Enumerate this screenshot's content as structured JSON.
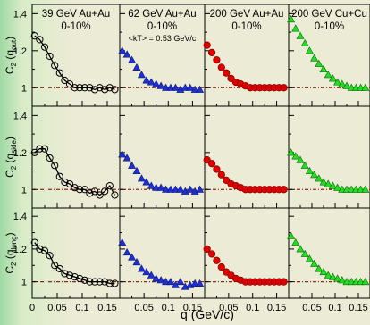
{
  "figure": {
    "x_label": "q (GeV/c)",
    "row_labels": [
      {
        "main": "C",
        "sub": "2",
        "open": " (q",
        "qsub": "out",
        "close": ")"
      },
      {
        "main": "C",
        "sub": "2",
        "open": " (q",
        "qsub": "side",
        "close": ")"
      },
      {
        "main": "C",
        "sub": "2",
        "open": " (q",
        "qsub": "long",
        "close": ")"
      }
    ],
    "columns": [
      {
        "title": "39 GeV Au+Au",
        "centrality": "0-10%",
        "color": "#000000",
        "marker": "open-circle"
      },
      {
        "title": "62 GeV Au+Au",
        "centrality": "0-10%",
        "kt_note": "<kT> = 0.53 GeV/c",
        "color": "#1f2fd0",
        "marker": "triangle"
      },
      {
        "title": "200 GeV Au+Au",
        "centrality": "0-10%",
        "color": "#e00000",
        "marker": "circle"
      },
      {
        "title": "200 GeV Cu+Cu",
        "centrality": "0-10%",
        "color": "#22dd22",
        "marker": "triangle"
      }
    ],
    "y_ticks": [
      "1.4",
      "1.2",
      "1"
    ],
    "x_ticks_first": [
      "0",
      "0.05",
      "0.1",
      "0.15"
    ],
    "x_ticks_other": [
      "0.05",
      "0.1",
      "0.15"
    ],
    "baseline_color": "#8b2a1a"
  },
  "chart_data": {
    "type": "scatter",
    "xlabel": "q (GeV/c)",
    "ylim": [
      0.9,
      1.45
    ],
    "xlim": [
      0,
      0.175
    ],
    "rows": [
      "q_out",
      "q_side",
      "q_long"
    ],
    "series": [
      {
        "name": "39 GeV Au+Au",
        "row": "q_out",
        "x": [
          0.005,
          0.015,
          0.025,
          0.035,
          0.045,
          0.055,
          0.065,
          0.075,
          0.085,
          0.095,
          0.105,
          0.115,
          0.125,
          0.135,
          0.145,
          0.155,
          0.165
        ],
        "y": [
          1.28,
          1.26,
          1.22,
          1.17,
          1.12,
          1.08,
          1.04,
          1.02,
          1.0,
          1.0,
          1.0,
          1.0,
          0.99,
          1.0,
          0.99,
          1.0,
          0.99
        ]
      },
      {
        "name": "39 GeV Au+Au",
        "row": "q_side",
        "x": [
          0.005,
          0.015,
          0.025,
          0.035,
          0.045,
          0.055,
          0.065,
          0.075,
          0.085,
          0.095,
          0.105,
          0.115,
          0.125,
          0.135,
          0.145,
          0.155,
          0.165
        ],
        "y": [
          1.2,
          1.22,
          1.22,
          1.17,
          1.13,
          1.07,
          1.04,
          1.03,
          1.01,
          1.0,
          1.0,
          0.98,
          0.99,
          0.97,
          0.99,
          1.02,
          0.97
        ]
      },
      {
        "name": "39 GeV Au+Au",
        "row": "q_long",
        "x": [
          0.005,
          0.015,
          0.025,
          0.035,
          0.045,
          0.055,
          0.065,
          0.075,
          0.085,
          0.095,
          0.105,
          0.115,
          0.125,
          0.135,
          0.145,
          0.155,
          0.165
        ],
        "y": [
          1.24,
          1.2,
          1.19,
          1.16,
          1.1,
          1.08,
          1.05,
          1.04,
          1.03,
          1.02,
          1.01,
          1.0,
          1.0,
          1.0,
          1.0,
          0.99,
          0.99
        ]
      },
      {
        "name": "62 GeV Au+Au",
        "row": "q_out",
        "x": [
          0.005,
          0.015,
          0.025,
          0.035,
          0.045,
          0.055,
          0.065,
          0.075,
          0.085,
          0.095,
          0.105,
          0.115,
          0.125,
          0.135,
          0.145,
          0.155,
          0.165
        ],
        "y": [
          1.2,
          1.18,
          1.15,
          1.11,
          1.07,
          1.04,
          1.03,
          1.02,
          1.01,
          1.0,
          1.0,
          1.0,
          0.99,
          1.0,
          1.0,
          0.99,
          0.99
        ]
      },
      {
        "name": "62 GeV Au+Au",
        "row": "q_side",
        "x": [
          0.005,
          0.015,
          0.025,
          0.035,
          0.045,
          0.055,
          0.065,
          0.075,
          0.085,
          0.095,
          0.105,
          0.115,
          0.125,
          0.135,
          0.145,
          0.155,
          0.165
        ],
        "y": [
          1.19,
          1.17,
          1.13,
          1.1,
          1.06,
          1.04,
          1.02,
          1.01,
          1.01,
          1.0,
          1.0,
          1.0,
          1.0,
          0.99,
          1.0,
          0.99,
          1.0
        ]
      },
      {
        "name": "62 GeV Au+Au",
        "row": "q_long",
        "x": [
          0.005,
          0.015,
          0.025,
          0.035,
          0.045,
          0.055,
          0.065,
          0.075,
          0.085,
          0.095,
          0.105,
          0.115,
          0.125,
          0.135,
          0.145,
          0.155,
          0.165
        ],
        "y": [
          1.24,
          1.18,
          1.15,
          1.12,
          1.08,
          1.06,
          1.04,
          1.02,
          1.01,
          1.0,
          1.0,
          0.98,
          1.0,
          0.97,
          0.98,
          0.99,
          0.99
        ]
      },
      {
        "name": "200 GeV Au+Au",
        "row": "q_out",
        "x": [
          0.005,
          0.015,
          0.025,
          0.035,
          0.045,
          0.055,
          0.065,
          0.075,
          0.085,
          0.095,
          0.105,
          0.115,
          0.125,
          0.135,
          0.145,
          0.155,
          0.165
        ],
        "y": [
          1.23,
          1.19,
          1.15,
          1.11,
          1.08,
          1.05,
          1.03,
          1.02,
          1.01,
          1.0,
          1.0,
          1.0,
          1.0,
          1.0,
          1.0,
          1.0,
          1.0
        ]
      },
      {
        "name": "200 GeV Au+Au",
        "row": "q_side",
        "x": [
          0.005,
          0.015,
          0.025,
          0.035,
          0.045,
          0.055,
          0.065,
          0.075,
          0.085,
          0.095,
          0.105,
          0.115,
          0.125,
          0.135,
          0.145,
          0.155,
          0.165
        ],
        "y": [
          1.16,
          1.14,
          1.11,
          1.08,
          1.05,
          1.03,
          1.02,
          1.01,
          1.0,
          1.0,
          1.0,
          1.0,
          1.0,
          1.0,
          1.0,
          1.0,
          1.0
        ]
      },
      {
        "name": "200 GeV Au+Au",
        "row": "q_long",
        "x": [
          0.005,
          0.015,
          0.025,
          0.035,
          0.045,
          0.055,
          0.065,
          0.075,
          0.085,
          0.095,
          0.105,
          0.115,
          0.125,
          0.135,
          0.145,
          0.155,
          0.165
        ],
        "y": [
          1.2,
          1.17,
          1.13,
          1.09,
          1.06,
          1.04,
          1.02,
          1.01,
          1.0,
          1.0,
          1.0,
          1.0,
          1.0,
          1.0,
          1.0,
          1.0,
          1.0
        ]
      },
      {
        "name": "200 GeV Cu+Cu",
        "row": "q_out",
        "x": [
          0.005,
          0.015,
          0.025,
          0.035,
          0.045,
          0.055,
          0.065,
          0.075,
          0.085,
          0.095,
          0.105,
          0.115,
          0.125,
          0.135,
          0.145,
          0.155,
          0.165
        ],
        "y": [
          1.37,
          1.32,
          1.28,
          1.24,
          1.2,
          1.16,
          1.13,
          1.1,
          1.07,
          1.05,
          1.03,
          1.02,
          1.01,
          1.0,
          1.0,
          1.0,
          1.0
        ]
      },
      {
        "name": "200 GeV Cu+Cu",
        "row": "q_side",
        "x": [
          0.005,
          0.015,
          0.025,
          0.035,
          0.045,
          0.055,
          0.065,
          0.075,
          0.085,
          0.095,
          0.105,
          0.115,
          0.125,
          0.135,
          0.145,
          0.155,
          0.165
        ],
        "y": [
          1.2,
          1.18,
          1.16,
          1.13,
          1.1,
          1.08,
          1.06,
          1.04,
          1.03,
          1.02,
          1.01,
          1.0,
          1.0,
          1.0,
          1.0,
          1.0,
          1.0
        ]
      },
      {
        "name": "200 GeV Cu+Cu",
        "row": "q_long",
        "x": [
          0.005,
          0.015,
          0.025,
          0.035,
          0.045,
          0.055,
          0.065,
          0.075,
          0.085,
          0.095,
          0.105,
          0.115,
          0.125,
          0.135,
          0.145,
          0.155,
          0.165
        ],
        "y": [
          1.28,
          1.24,
          1.2,
          1.17,
          1.14,
          1.11,
          1.08,
          1.06,
          1.04,
          1.03,
          1.02,
          1.01,
          1.0,
          1.0,
          1.0,
          1.0,
          1.0
        ]
      }
    ]
  }
}
